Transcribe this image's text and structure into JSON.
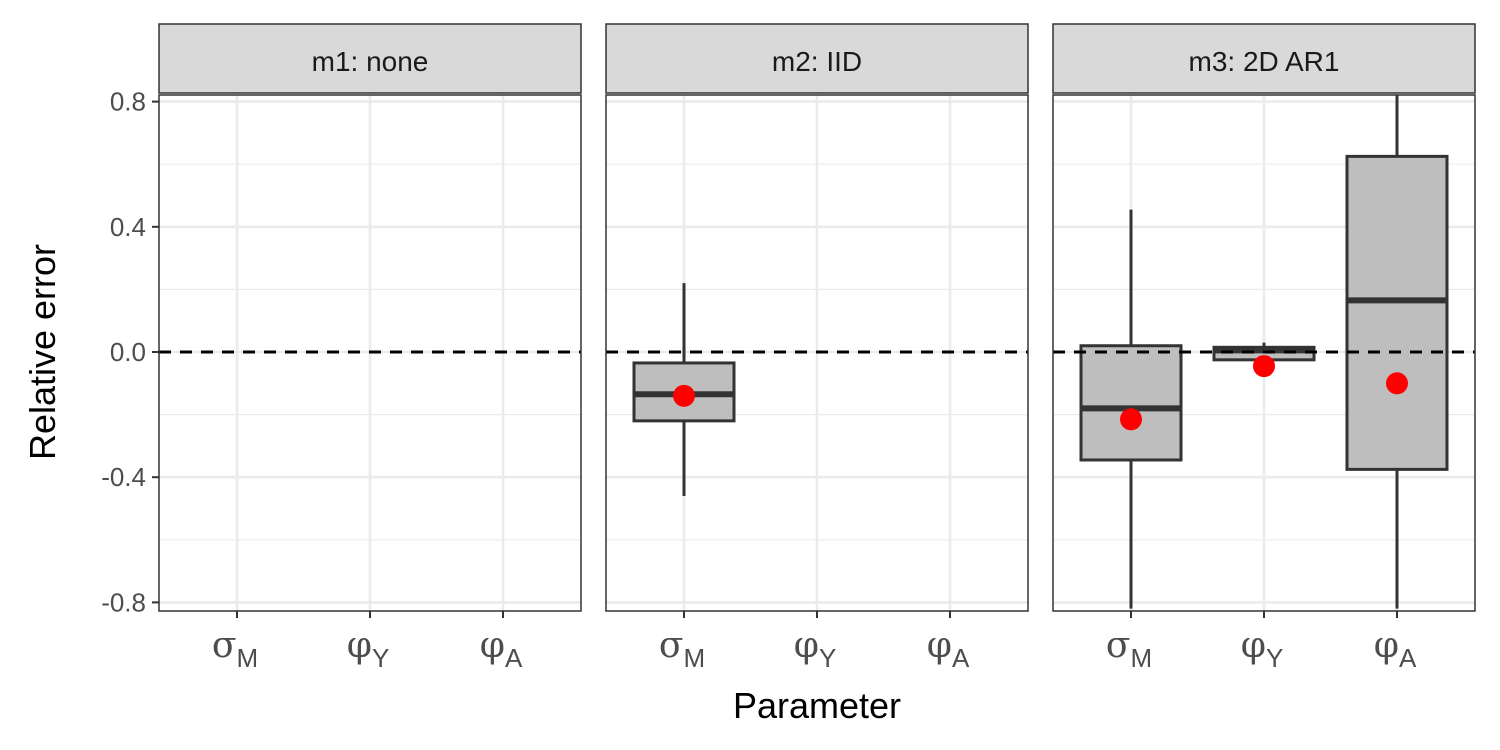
{
  "chart_data": {
    "type": "boxplot",
    "xlabel": "Parameter",
    "ylabel": "Relative error",
    "ylim": [
      -0.82,
      0.82
    ],
    "yticks": [
      -0.8,
      -0.4,
      0.0,
      0.4,
      0.8
    ],
    "ytick_labels": [
      "-0.8",
      "-0.4",
      "0.0",
      "0.4",
      "0.8"
    ],
    "reference_line": {
      "y": 0.0,
      "style": "dashed"
    },
    "categories": [
      {
        "symbol": "σ",
        "subscript": "M"
      },
      {
        "symbol": "φ",
        "subscript": "Y"
      },
      {
        "symbol": "φ",
        "subscript": "A"
      }
    ],
    "grid": true,
    "colors": {
      "box_fill": "#bebebe",
      "box_line": "#333333",
      "mean_point": "#ff0000",
      "strip_fill": "#d9d9d9",
      "grid": "#ebebeb"
    },
    "panels": [
      {
        "strip": "m1:  none",
        "boxes": []
      },
      {
        "strip": "m2:  IID",
        "boxes": [
          {
            "category": 0,
            "whisker_low": -0.46,
            "q1": -0.22,
            "median": -0.135,
            "q3": -0.035,
            "whisker_high": 0.22,
            "mean": -0.14
          }
        ]
      },
      {
        "strip": "m3:  2D  AR1",
        "boxes": [
          {
            "category": 0,
            "whisker_low": -0.82,
            "q1": -0.345,
            "median": -0.18,
            "q3": 0.02,
            "whisker_high": 0.455,
            "mean": -0.215
          },
          {
            "category": 1,
            "whisker_low": -0.03,
            "q1": -0.025,
            "median": 0.005,
            "q3": 0.015,
            "whisker_high": 0.03,
            "mean": -0.045
          },
          {
            "category": 2,
            "whisker_low": -0.82,
            "q1": -0.375,
            "median": 0.165,
            "q3": 0.625,
            "whisker_high": 0.82,
            "mean": -0.1
          }
        ]
      }
    ]
  }
}
